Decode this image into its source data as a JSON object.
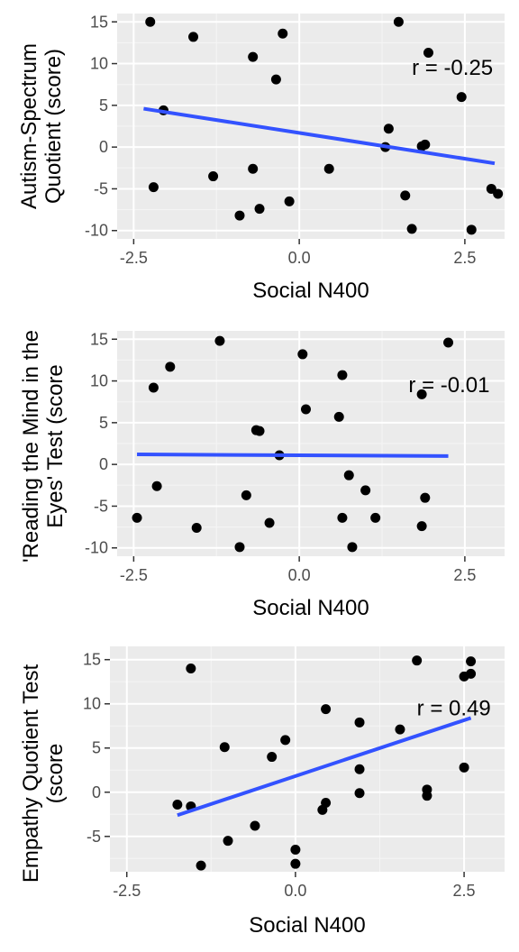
{
  "chart_data": [
    {
      "type": "scatter",
      "xlabel": "Social N400",
      "ylabel": [
        "Autism-Spectrum",
        "Quotient (score)"
      ],
      "xlim": [
        -2.75,
        3.1
      ],
      "ylim": [
        -11,
        16
      ],
      "xticks": [
        -2.5,
        0,
        2.5
      ],
      "xtick_labels": [
        "-2.5",
        "0.0",
        "2.5"
      ],
      "yticks": [
        -10,
        -5,
        0,
        5,
        10,
        15
      ],
      "ytick_labels": [
        "-10",
        "-5",
        "0",
        "5",
        "10",
        "15"
      ],
      "grid": true,
      "annotation": {
        "text": "r =  -0.25",
        "x": 1.7,
        "y": 9.5
      },
      "fit": {
        "x": [
          -2.35,
          2.95
        ],
        "y": [
          4.6,
          -1.95
        ],
        "color": "#3352ff"
      },
      "points": [
        [
          -2.25,
          15.0
        ],
        [
          -1.6,
          13.2
        ],
        [
          -0.25,
          13.6
        ],
        [
          -0.7,
          10.8
        ],
        [
          -0.35,
          8.1
        ],
        [
          -2.05,
          4.4
        ],
        [
          -2.2,
          -4.8
        ],
        [
          -1.3,
          -3.5
        ],
        [
          -0.7,
          -2.6
        ],
        [
          -0.9,
          -8.2
        ],
        [
          -0.6,
          -7.4
        ],
        [
          -0.15,
          -6.5
        ],
        [
          0.45,
          -2.6
        ],
        [
          1.5,
          15.0
        ],
        [
          1.95,
          11.3
        ],
        [
          2.45,
          6.0
        ],
        [
          1.35,
          2.2
        ],
        [
          1.3,
          0.0
        ],
        [
          1.85,
          0.1
        ],
        [
          1.9,
          0.3
        ],
        [
          1.6,
          -5.8
        ],
        [
          1.7,
          -9.8
        ],
        [
          2.6,
          -9.9
        ],
        [
          2.9,
          -5.0
        ],
        [
          3.0,
          -5.6
        ]
      ]
    },
    {
      "type": "scatter",
      "xlabel": "Social N400",
      "ylabel": [
        "'Reading the Mind in the",
        "Eyes' Test (score"
      ],
      "xlim": [
        -2.75,
        3.1
      ],
      "ylim": [
        -11,
        16
      ],
      "xticks": [
        -2.5,
        0,
        2.5
      ],
      "xtick_labels": [
        "-2.5",
        "0.0",
        "2.5"
      ],
      "yticks": [
        -10,
        -5,
        0,
        5,
        10,
        15
      ],
      "ytick_labels": [
        "-10",
        "-5",
        "0",
        "5",
        "10",
        "15"
      ],
      "grid": true,
      "annotation": {
        "text": "r =  -0.01",
        "x": 1.65,
        "y": 9.5
      },
      "fit": {
        "x": [
          -2.45,
          2.25
        ],
        "y": [
          1.2,
          1.0
        ],
        "color": "#3352ff"
      },
      "points": [
        [
          -1.2,
          14.8
        ],
        [
          -1.95,
          11.7
        ],
        [
          -2.2,
          9.2
        ],
        [
          0.05,
          13.2
        ],
        [
          0.65,
          10.7
        ],
        [
          -0.65,
          4.1
        ],
        [
          -0.6,
          4.0
        ],
        [
          0.1,
          6.6
        ],
        [
          0.6,
          5.7
        ],
        [
          -0.3,
          1.1
        ],
        [
          -2.15,
          -2.6
        ],
        [
          -2.45,
          -6.4
        ],
        [
          -1.55,
          -7.6
        ],
        [
          -0.8,
          -3.7
        ],
        [
          -0.45,
          -7.0
        ],
        [
          -0.9,
          -9.9
        ],
        [
          0.75,
          -1.3
        ],
        [
          1.0,
          -3.1
        ],
        [
          0.65,
          -6.4
        ],
        [
          1.15,
          -6.4
        ],
        [
          0.8,
          -9.9
        ],
        [
          1.9,
          -4.0
        ],
        [
          1.85,
          -7.4
        ],
        [
          1.85,
          8.4
        ],
        [
          2.25,
          14.6
        ]
      ]
    },
    {
      "type": "scatter",
      "xlabel": "Social N400",
      "ylabel": [
        "Empathy Quotient Test",
        "(score"
      ],
      "xlim": [
        -2.75,
        3.1
      ],
      "ylim": [
        -9,
        16.5
      ],
      "xticks": [
        -2.5,
        0,
        2.5
      ],
      "xtick_labels": [
        "-2.5",
        "0.0",
        "2.5"
      ],
      "yticks": [
        -5,
        0,
        5,
        10,
        15
      ],
      "ytick_labels": [
        "-5",
        "0",
        "5",
        "10",
        "15"
      ],
      "grid": true,
      "annotation": {
        "text": "r =  0.49",
        "x": 1.8,
        "y": 9.5
      },
      "fit": {
        "x": [
          -1.75,
          2.6
        ],
        "y": [
          -2.6,
          8.4
        ],
        "color": "#3352ff"
      },
      "points": [
        [
          -1.55,
          14.0
        ],
        [
          -1.05,
          5.1
        ],
        [
          -1.75,
          -1.4
        ],
        [
          -1.55,
          -1.6
        ],
        [
          -1.4,
          -8.3
        ],
        [
          -1.0,
          -5.5
        ],
        [
          -0.6,
          -3.8
        ],
        [
          -0.35,
          4.0
        ],
        [
          -0.15,
          5.9
        ],
        [
          0.45,
          9.4
        ],
        [
          0.95,
          7.9
        ],
        [
          0.0,
          -6.5
        ],
        [
          0.0,
          -8.1
        ],
        [
          0.4,
          -2.0
        ],
        [
          0.45,
          -1.2
        ],
        [
          0.95,
          2.6
        ],
        [
          0.95,
          -0.1
        ],
        [
          1.55,
          7.1
        ],
        [
          1.8,
          14.9
        ],
        [
          2.5,
          13.1
        ],
        [
          2.6,
          13.4
        ],
        [
          2.6,
          14.8
        ],
        [
          2.5,
          2.8
        ],
        [
          1.95,
          0.3
        ],
        [
          1.95,
          -0.4
        ]
      ]
    }
  ]
}
